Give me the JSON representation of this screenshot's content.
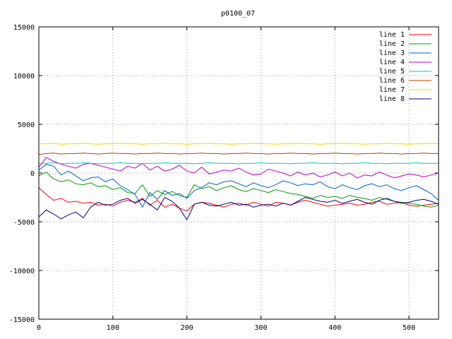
{
  "chart_data": {
    "type": "line",
    "title": "p0100_07",
    "xlabel": "",
    "ylabel": "",
    "xlim": [
      0,
      540
    ],
    "ylim": [
      -15000,
      15000
    ],
    "x_ticks": [
      0,
      100,
      200,
      300,
      400,
      500
    ],
    "y_ticks": [
      -15000,
      -10000,
      -5000,
      0,
      5000,
      10000,
      15000
    ],
    "grid": true,
    "legend_position": "top-right",
    "x": [
      0,
      10,
      20,
      30,
      40,
      50,
      60,
      70,
      80,
      90,
      100,
      110,
      120,
      130,
      140,
      150,
      160,
      170,
      180,
      190,
      200,
      210,
      220,
      230,
      240,
      250,
      260,
      270,
      280,
      290,
      300,
      310,
      320,
      330,
      340,
      350,
      360,
      370,
      380,
      390,
      400,
      410,
      420,
      430,
      440,
      450,
      460,
      470,
      480,
      490,
      500,
      510,
      520,
      530,
      540
    ],
    "series": [
      {
        "name": "line 1",
        "color": "#ff0000",
        "values": [
          -1500,
          -2200,
          -2800,
          -2600,
          -3000,
          -2900,
          -3100,
          -3000,
          -3300,
          -3200,
          -3400,
          -3000,
          -2800,
          -3000,
          -2600,
          -3300,
          -2800,
          -3500,
          -3200,
          -3600,
          -3900,
          -3200,
          -3000,
          -3100,
          -3300,
          -3500,
          -3200,
          -3100,
          -3300,
          -3000,
          -3200,
          -3400,
          -3000,
          -3100,
          -3300,
          -3000,
          -2800,
          -3000,
          -3200,
          -3400,
          -3300,
          -3200,
          -3100,
          -3300,
          -3200,
          -3000,
          -2900,
          -3200,
          -3100,
          -3000,
          -3300,
          -3400,
          -3300,
          -3200,
          -3100
        ]
      },
      {
        "name": "line 2",
        "color": "#00a000",
        "values": [
          -300,
          100,
          -600,
          -900,
          -700,
          -1100,
          -1200,
          -1000,
          -1400,
          -1300,
          -1700,
          -1500,
          -2000,
          -2100,
          -1200,
          -2400,
          -1800,
          -2200,
          -1900,
          -2300,
          -2500,
          -1200,
          -1600,
          -1400,
          -1800,
          -1500,
          -1300,
          -1700,
          -1900,
          -1600,
          -1800,
          -2000,
          -1700,
          -1900,
          -2100,
          -2200,
          -2400,
          -2600,
          -2300,
          -2500,
          -2400,
          -2600,
          -2300,
          -2500,
          -2600,
          -2800,
          -2500,
          -2700,
          -2900,
          -3000,
          -3100,
          -3200,
          -3400,
          -3500,
          -3300
        ]
      },
      {
        "name": "line 3",
        "color": "#0060d0",
        "values": [
          300,
          900,
          700,
          -200,
          200,
          -300,
          -800,
          -500,
          -400,
          -900,
          -600,
          -1300,
          -1700,
          -2200,
          -3500,
          -2000,
          -2700,
          -1800,
          -2300,
          -2100,
          -2600,
          -1800,
          -1500,
          -1000,
          -1200,
          -900,
          -800,
          -1100,
          -1400,
          -1000,
          -1300,
          -1500,
          -1200,
          -800,
          -1000,
          -1300,
          -1100,
          -1200,
          -900,
          -1400,
          -1600,
          -1200,
          -1500,
          -1700,
          -1300,
          -1100,
          -1400,
          -1200,
          -1600,
          -1800,
          -1500,
          -1300,
          -1700,
          -2100,
          -2800
        ]
      },
      {
        "name": "line 4",
        "color": "#c000c0",
        "values": [
          600,
          1600,
          1200,
          900,
          700,
          500,
          900,
          1000,
          800,
          600,
          400,
          200,
          700,
          500,
          1000,
          300,
          700,
          200,
          400,
          800,
          200,
          0,
          600,
          -100,
          100,
          300,
          200,
          500,
          100,
          -200,
          -100,
          400,
          200,
          0,
          -300,
          100,
          -200,
          0,
          -400,
          -200,
          100,
          -300,
          0,
          -500,
          -200,
          -300,
          100,
          -200,
          -500,
          -300,
          -100,
          -200,
          -400,
          -200,
          0
        ]
      },
      {
        "name": "line 5",
        "color": "#00c8c8",
        "values": [
          1000,
          1000,
          1050,
          950,
          1000,
          1000,
          1050,
          1000,
          950,
          1000,
          1000,
          1050,
          1000,
          1000,
          950,
          1000,
          1000,
          1050,
          1000,
          1000,
          1000,
          950,
          1000,
          1050,
          1000,
          1000,
          1000,
          950,
          1000,
          1000,
          1050,
          1000,
          1000,
          1000,
          950,
          1000,
          1000,
          1050,
          1000,
          1000,
          1000,
          950,
          1000,
          1000,
          1050,
          1000,
          1000,
          950,
          1000,
          1000,
          1000,
          1050,
          1000,
          1000,
          1000
        ]
      },
      {
        "name": "line 6",
        "color": "#c04000",
        "values": [
          1900,
          2000,
          2050,
          1950,
          2000,
          2000,
          2050,
          2000,
          1950,
          2000,
          2050,
          2000,
          2000,
          1950,
          2000,
          2000,
          2050,
          2000,
          2000,
          1950,
          2000,
          2000,
          2050,
          2000,
          2000,
          1950,
          2000,
          2000,
          2050,
          2000,
          2000,
          1950,
          2000,
          2000,
          2050,
          2000,
          2000,
          1950,
          2000,
          2000,
          2050,
          2000,
          2000,
          1950,
          2000,
          2000,
          2050,
          2000,
          2000,
          1950,
          2000,
          2000,
          2050,
          2000,
          2000
        ]
      },
      {
        "name": "line 7",
        "color": "#e0e000",
        "values": [
          3000,
          3000,
          3050,
          2950,
          3000,
          3000,
          3050,
          3000,
          2950,
          3000,
          3000,
          3050,
          3000,
          3000,
          2950,
          3000,
          3000,
          3050,
          3000,
          3000,
          2950,
          3000,
          3000,
          3050,
          3000,
          3000,
          2950,
          3000,
          3000,
          3050,
          3000,
          3000,
          2950,
          3000,
          3000,
          3050,
          3000,
          3000,
          2950,
          3000,
          3000,
          3050,
          3000,
          3000,
          2950,
          3000,
          3000,
          3050,
          3000,
          3000,
          2950,
          3000,
          3000,
          3050,
          3000
        ]
      },
      {
        "name": "line 8",
        "color": "#000080",
        "values": [
          -4500,
          -3800,
          -4200,
          -4700,
          -4300,
          -4000,
          -4600,
          -3500,
          -3000,
          -3300,
          -3200,
          -2800,
          -2600,
          -3100,
          -2700,
          -3200,
          -3800,
          -2500,
          -2900,
          -3600,
          -4800,
          -3200,
          -3000,
          -3300,
          -3400,
          -3200,
          -3000,
          -3300,
          -3200,
          -3500,
          -3300,
          -3200,
          -3400,
          -3100,
          -3300,
          -2900,
          -2500,
          -2700,
          -2900,
          -3000,
          -2800,
          -3100,
          -2900,
          -2700,
          -3000,
          -3200,
          -2800,
          -2600,
          -2900,
          -3100,
          -3000,
          -2800,
          -2700,
          -2900,
          -3200
        ]
      }
    ]
  }
}
